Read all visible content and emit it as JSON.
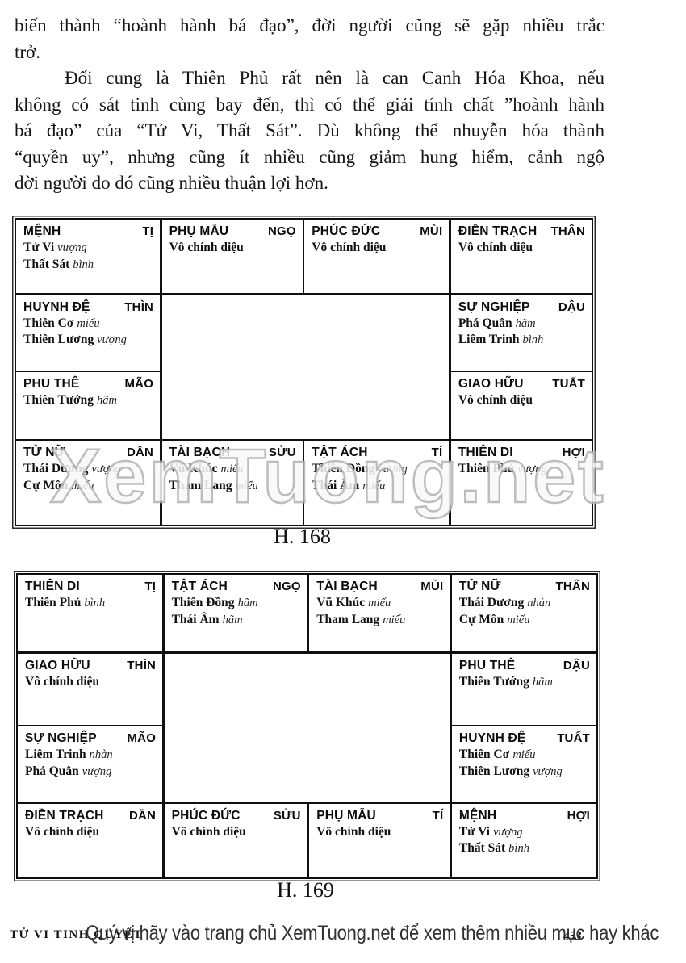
{
  "text": {
    "line1": "biến thành “hoành hành bá đạo”, đời người cũng sẽ gặp nhiều trắc",
    "line2": "trở.",
    "line3": "Đối cung là Thiên Phủ rất nên là can Canh Hóa Khoa, nếu",
    "line4": "không có sát tinh cùng bay đến, thì có thể giải tính chất ”hoành hành",
    "line5": "bá đạo” của “Tử Vi, Thất Sát”. Dù không thể nhuyễn hóa thành",
    "line6": "“quyền uy”, nhưng cũng ít nhiều cũng giảm hung hiểm, cảnh ngộ",
    "line7": "đời người do đó cũng nhiều thuận lợi hơn."
  },
  "charts": [
    {
      "caption": "H. 168",
      "cells": [
        {
          "palace": "MỆNH",
          "branch": "TỊ",
          "stars": [
            {
              "name": "Tử Vi",
              "status": "vượng"
            },
            {
              "name": "Thất Sát",
              "status": "bình"
            }
          ]
        },
        {
          "palace": "PHỤ MẪU",
          "branch": "NGỌ",
          "stars": [
            {
              "name": "Vô chính diệu",
              "status": ""
            }
          ]
        },
        {
          "palace": "PHÚC ĐỨC",
          "branch": "MÙI",
          "stars": [
            {
              "name": "Vô chính diệu",
              "status": ""
            }
          ]
        },
        {
          "palace": "ĐIỀN TRẠCH",
          "branch": "THÂN",
          "stars": [
            {
              "name": "Vô chính diệu",
              "status": ""
            }
          ]
        },
        {
          "palace": "HUYNH ĐỆ",
          "branch": "THÌN",
          "stars": [
            {
              "name": "Thiên Cơ",
              "status": "miếu"
            },
            {
              "name": "Thiên Lương",
              "status": "vượng"
            }
          ]
        },
        {
          "palace": "SỰ NGHIỆP",
          "branch": "DẬU",
          "stars": [
            {
              "name": "Phá Quân",
              "status": "hãm"
            },
            {
              "name": "Liêm Trinh",
              "status": "bình"
            }
          ]
        },
        {
          "palace": "PHU THÊ",
          "branch": "MÃO",
          "stars": [
            {
              "name": "Thiên Tướng",
              "status": "hãm"
            }
          ]
        },
        {
          "palace": "GIAO HỮU",
          "branch": "TUẤT",
          "stars": [
            {
              "name": "Vô chính diệu",
              "status": ""
            }
          ]
        },
        {
          "palace": "TỬ NỮ",
          "branch": "DẦN",
          "stars": [
            {
              "name": "Thái Dương",
              "status": "vượng"
            },
            {
              "name": "Cự Môn",
              "status": "miếu"
            }
          ]
        },
        {
          "palace": "TÀI BẠCH",
          "branch": "SỬU",
          "stars": [
            {
              "name": "Vũ Khúc",
              "status": "miếu"
            },
            {
              "name": "Tham Lang",
              "status": "miếu"
            }
          ]
        },
        {
          "palace": "TẬT ÁCH",
          "branch": "TÍ",
          "stars": [
            {
              "name": "Thiên Đồng",
              "status": "vượng"
            },
            {
              "name": "Thái Âm",
              "status": "miếu"
            }
          ]
        },
        {
          "palace": "THIÊN DI",
          "branch": "HỢI",
          "stars": [
            {
              "name": "Thiên Phủ",
              "status": "vượng"
            }
          ]
        }
      ]
    },
    {
      "caption": "H. 169",
      "cells": [
        {
          "palace": "THIÊN DI",
          "branch": "TỊ",
          "stars": [
            {
              "name": "Thiên Phủ",
              "status": "bình"
            }
          ]
        },
        {
          "palace": "TẬT ÁCH",
          "branch": "NGỌ",
          "stars": [
            {
              "name": "Thiên Đồng",
              "status": "hãm"
            },
            {
              "name": "Thái Âm",
              "status": "hãm"
            }
          ]
        },
        {
          "palace": "TÀI BẠCH",
          "branch": "MÙI",
          "stars": [
            {
              "name": "Vũ Khúc",
              "status": "miếu"
            },
            {
              "name": "Tham Lang",
              "status": "miếu"
            }
          ]
        },
        {
          "palace": "TỬ NỮ",
          "branch": "THÂN",
          "stars": [
            {
              "name": "Thái Dương",
              "status": "nhàn"
            },
            {
              "name": "Cự Môn",
              "status": "miếu"
            }
          ]
        },
        {
          "palace": "GIAO HỮU",
          "branch": "THÌN",
          "stars": [
            {
              "name": "Vô chính diệu",
              "status": ""
            }
          ]
        },
        {
          "palace": "PHU THÊ",
          "branch": "DẬU",
          "stars": [
            {
              "name": "Thiên Tướng",
              "status": "hãm"
            }
          ]
        },
        {
          "palace": "SỰ NGHIỆP",
          "branch": "MÃO",
          "stars": [
            {
              "name": "Liêm Trinh",
              "status": "nhàn"
            },
            {
              "name": "Phá Quân",
              "status": "vượng"
            }
          ]
        },
        {
          "palace": "HUYNH ĐỆ",
          "branch": "TUẤT",
          "stars": [
            {
              "name": "Thiên Cơ",
              "status": "miếu"
            },
            {
              "name": "Thiên Lương",
              "status": "vượng"
            }
          ]
        },
        {
          "palace": "ĐIỀN TRẠCH",
          "branch": "DẦN",
          "stars": [
            {
              "name": "Vô chính diệu",
              "status": ""
            }
          ]
        },
        {
          "palace": "PHÚC ĐỨC",
          "branch": "SỬU",
          "stars": [
            {
              "name": "Vô chính diệu",
              "status": ""
            }
          ]
        },
        {
          "palace": "PHỤ MẪU",
          "branch": "TÍ",
          "stars": [
            {
              "name": "Vô chính diệu",
              "status": ""
            }
          ]
        },
        {
          "palace": "MỆNH",
          "branch": "HỢI",
          "stars": [
            {
              "name": "Tử Vi",
              "status": "vượng"
            },
            {
              "name": "Thất Sát",
              "status": "bình"
            }
          ]
        }
      ]
    }
  ],
  "watermark": "XemTuong.net",
  "footer": {
    "book_title": "TỬ VI TINH QUYẾT",
    "page_number": "433",
    "overlay": "Quý vị hãy vào trang chủ XemTuong.net để xem thêm nhiều mục hay khác"
  }
}
